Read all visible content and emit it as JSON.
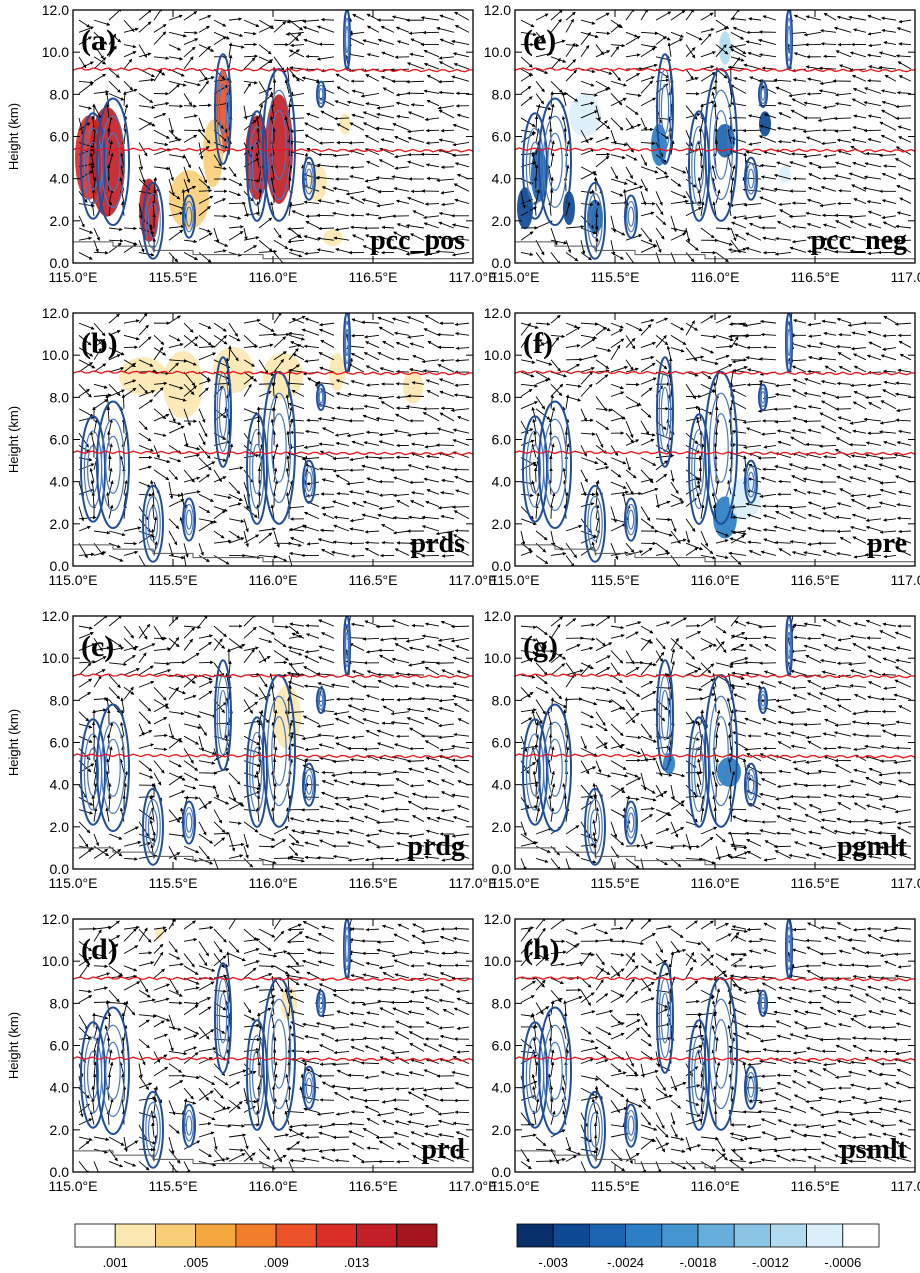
{
  "chart_data": {
    "type": "cross-section",
    "x_axis": {
      "range": [
        115.0,
        117.0
      ],
      "tick_labels": [
        "115.0°E",
        "115.5°E",
        "116.0°E",
        "116.5°E",
        "117.0°E"
      ]
    },
    "y_axis": {
      "label": "Height (km)",
      "range": [
        0.0,
        12.0
      ],
      "tick_labels": [
        "0.0",
        "2.0",
        "4.0",
        "6.0",
        "8.0",
        "10.0",
        "12.0"
      ]
    },
    "isotherm_heights_km": [
      9.2,
      5.4
    ],
    "panels": [
      {
        "id": "a",
        "label": "(a)",
        "name": "pcc_pos",
        "scale": "pos",
        "shades": [
          {
            "x": 115.08,
            "y": 5.0,
            "rx": 0.07,
            "ry": 2.0,
            "lvl": 6
          },
          {
            "x": 115.17,
            "y": 4.8,
            "rx": 0.09,
            "ry": 2.6,
            "lvl": 7
          },
          {
            "x": 115.38,
            "y": 2.5,
            "rx": 0.05,
            "ry": 1.5,
            "lvl": 7
          },
          {
            "x": 115.75,
            "y": 7.2,
            "rx": 0.04,
            "ry": 2.0,
            "lvl": 5
          },
          {
            "x": 115.92,
            "y": 5.0,
            "rx": 0.06,
            "ry": 2.0,
            "lvl": 7
          },
          {
            "x": 116.03,
            "y": 5.4,
            "rx": 0.07,
            "ry": 2.6,
            "lvl": 7
          },
          {
            "x": 115.58,
            "y": 3.0,
            "rx": 0.1,
            "ry": 1.4,
            "lvl": 2
          },
          {
            "x": 115.7,
            "y": 5.2,
            "rx": 0.05,
            "ry": 1.6,
            "lvl": 2
          },
          {
            "x": 116.22,
            "y": 3.8,
            "rx": 0.05,
            "ry": 0.9,
            "lvl": 1
          },
          {
            "x": 116.36,
            "y": 6.6,
            "rx": 0.03,
            "ry": 0.5,
            "lvl": 1
          },
          {
            "x": 116.3,
            "y": 1.2,
            "rx": 0.05,
            "ry": 0.4,
            "lvl": 1
          }
        ]
      },
      {
        "id": "e",
        "label": "(e)",
        "name": "pcc_neg",
        "scale": "neg",
        "shades": [
          {
            "x": 115.05,
            "y": 2.6,
            "rx": 0.04,
            "ry": 1.0,
            "lvl": 1
          },
          {
            "x": 115.12,
            "y": 4.2,
            "rx": 0.04,
            "ry": 1.3,
            "lvl": 2
          },
          {
            "x": 115.27,
            "y": 2.6,
            "rx": 0.03,
            "ry": 0.8,
            "lvl": 1
          },
          {
            "x": 115.4,
            "y": 2.2,
            "rx": 0.04,
            "ry": 0.8,
            "lvl": 2
          },
          {
            "x": 115.72,
            "y": 5.6,
            "rx": 0.04,
            "ry": 1.0,
            "lvl": 3
          },
          {
            "x": 116.05,
            "y": 5.8,
            "rx": 0.05,
            "ry": 0.8,
            "lvl": 2
          },
          {
            "x": 116.25,
            "y": 6.6,
            "rx": 0.03,
            "ry": 0.6,
            "lvl": 1
          },
          {
            "x": 115.35,
            "y": 7.0,
            "rx": 0.08,
            "ry": 1.0,
            "lvl": 8
          },
          {
            "x": 116.05,
            "y": 10.2,
            "rx": 0.03,
            "ry": 0.8,
            "lvl": 7
          },
          {
            "x": 116.35,
            "y": 4.2,
            "rx": 0.03,
            "ry": 0.4,
            "lvl": 8
          }
        ]
      },
      {
        "id": "b",
        "label": "(b)",
        "name": "prds",
        "scale": "pos",
        "shades": [
          {
            "x": 115.35,
            "y": 9.0,
            "rx": 0.12,
            "ry": 0.9,
            "lvl": 1
          },
          {
            "x": 115.55,
            "y": 8.6,
            "rx": 0.1,
            "ry": 1.6,
            "lvl": 1
          },
          {
            "x": 115.8,
            "y": 9.3,
            "rx": 0.1,
            "ry": 1.1,
            "lvl": 1
          },
          {
            "x": 116.05,
            "y": 9.0,
            "rx": 0.1,
            "ry": 1.1,
            "lvl": 1
          },
          {
            "x": 116.32,
            "y": 9.2,
            "rx": 0.04,
            "ry": 0.9,
            "lvl": 1
          },
          {
            "x": 116.7,
            "y": 8.5,
            "rx": 0.05,
            "ry": 0.8,
            "lvl": 1
          }
        ]
      },
      {
        "id": "f",
        "label": "(f)",
        "name": "pre",
        "scale": "neg",
        "shades": [
          {
            "x": 116.05,
            "y": 2.3,
            "rx": 0.06,
            "ry": 1.0,
            "lvl": 3
          },
          {
            "x": 116.15,
            "y": 3.2,
            "rx": 0.08,
            "ry": 1.0,
            "lvl": 8
          },
          {
            "x": 115.9,
            "y": 3.5,
            "rx": 0.05,
            "ry": 0.8,
            "lvl": 9
          },
          {
            "x": 116.45,
            "y": 3.2,
            "rx": 0.07,
            "ry": 0.6,
            "lvl": 9
          },
          {
            "x": 116.65,
            "y": 3.8,
            "rx": 0.06,
            "ry": 0.5,
            "lvl": 9
          },
          {
            "x": 115.55,
            "y": 2.6,
            "rx": 0.05,
            "ry": 0.5,
            "lvl": 9
          }
        ]
      },
      {
        "id": "c",
        "label": "(c)",
        "name": "prdg",
        "scale": "pos",
        "shades": [
          {
            "x": 116.07,
            "y": 7.2,
            "rx": 0.07,
            "ry": 1.5,
            "lvl": 1
          }
        ]
      },
      {
        "id": "g",
        "label": "(g)",
        "name": "pgmlt",
        "scale": "neg",
        "shades": [
          {
            "x": 115.77,
            "y": 5.0,
            "rx": 0.03,
            "ry": 0.5,
            "lvl": 3
          },
          {
            "x": 116.07,
            "y": 4.6,
            "rx": 0.06,
            "ry": 0.7,
            "lvl": 3
          }
        ]
      },
      {
        "id": "d",
        "label": "(d)",
        "name": "prd",
        "scale": "pos",
        "shades": [
          {
            "x": 115.43,
            "y": 11.3,
            "rx": 0.02,
            "ry": 0.3,
            "lvl": 1
          },
          {
            "x": 116.08,
            "y": 8.0,
            "rx": 0.04,
            "ry": 0.8,
            "lvl": 1
          }
        ]
      },
      {
        "id": "h",
        "label": "(h)",
        "name": "psmlt",
        "scale": "neg",
        "shades": [
          {
            "x": 115.65,
            "y": 5.1,
            "rx": 0.4,
            "ry": 0.35,
            "lvl": 9
          },
          {
            "x": 116.5,
            "y": 5.0,
            "rx": 0.22,
            "ry": 0.3,
            "lvl": 9
          }
        ]
      }
    ],
    "contour_cells": [
      {
        "x": 115.1,
        "y": 4.6,
        "rx": 0.06,
        "ry": 2.5
      },
      {
        "x": 115.2,
        "y": 4.8,
        "rx": 0.08,
        "ry": 3.0
      },
      {
        "x": 115.4,
        "y": 2.0,
        "rx": 0.05,
        "ry": 1.8
      },
      {
        "x": 115.58,
        "y": 2.2,
        "rx": 0.03,
        "ry": 1.0
      },
      {
        "x": 115.75,
        "y": 7.3,
        "rx": 0.04,
        "ry": 2.6
      },
      {
        "x": 115.92,
        "y": 4.6,
        "rx": 0.05,
        "ry": 2.6
      },
      {
        "x": 116.03,
        "y": 5.6,
        "rx": 0.08,
        "ry": 3.6
      },
      {
        "x": 116.18,
        "y": 4.0,
        "rx": 0.03,
        "ry": 1.0
      },
      {
        "x": 116.24,
        "y": 8.0,
        "rx": 0.02,
        "ry": 0.6
      },
      {
        "x": 116.37,
        "y": 10.6,
        "rx": 0.015,
        "ry": 1.4
      }
    ],
    "colorbar_pos": {
      "colors": [
        "#ffffff",
        "#fbe8b1",
        "#f8cf78",
        "#f5a83f",
        "#f27e2b",
        "#ec5227",
        "#da2d26",
        "#c31f26",
        "#a3161e"
      ],
      "tick_labels": [
        ".001",
        ".005",
        ".009",
        ".013"
      ]
    },
    "colorbar_neg": {
      "colors": [
        "#08306b",
        "#0e4a94",
        "#1a64b0",
        "#2b7fc4",
        "#4495d0",
        "#66aedb",
        "#8bc5e6",
        "#b2dbf0",
        "#dbeffa",
        "#ffffff"
      ],
      "tick_labels": [
        "-.003",
        "-.0024",
        "-.0018",
        "-.0012",
        "-.0006"
      ]
    }
  }
}
